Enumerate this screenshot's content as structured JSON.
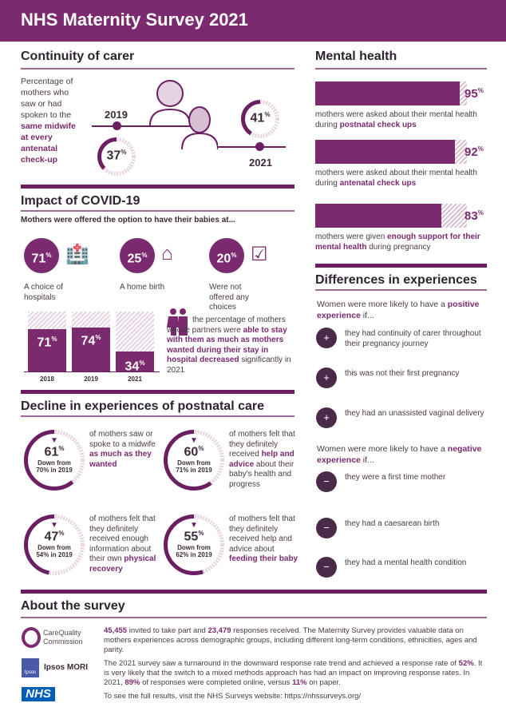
{
  "title": "NHS Maternity Survey 2021",
  "colors": {
    "brand": "#7b2a70",
    "light": "#e6d3e2",
    "text": "#3b2b38"
  },
  "continuity": {
    "heading": "Continuity of carer",
    "desc": [
      {
        "t": "Percentage of mothers who saw or had spoken to the "
      },
      {
        "t": "same midwife at every antenatal check-up",
        "b": true
      }
    ],
    "y2019": "2019",
    "v2019": 37,
    "y2021": "2021",
    "v2021": 41,
    "pct": "%"
  },
  "covid": {
    "heading": "Impact of COVID-19",
    "sub": "Mothers were offered the option to have their babies at...",
    "options": [
      {
        "value": 71,
        "label": "A choice of hospitals",
        "icon": "hospital-icon"
      },
      {
        "value": 25,
        "label": "A home birth",
        "icon": "house-icon"
      },
      {
        "value": 20,
        "label": "Were not offered any choices",
        "icon": "checkbox-icon"
      }
    ],
    "chart_data": {
      "type": "bar",
      "categories": [
        "2018",
        "2019",
        "2021"
      ],
      "values": [
        71,
        74,
        34
      ],
      "ylim": [
        0,
        100
      ]
    },
    "partners": [
      {
        "t": "the percentage of mothers whose partners were "
      },
      {
        "t": "able to stay with them as much as mothers wanted during their stay in hospital decreased",
        "b": true
      },
      {
        "t": " significantly in 2021"
      }
    ]
  },
  "postnatal": {
    "heading": "Decline in experiences of postnatal care",
    "items": [
      {
        "value": 61,
        "down": "Down from 70% in 2019",
        "text": [
          {
            "t": "of mothers saw or spoke to a midwife "
          },
          {
            "t": "as much as they wanted",
            "b": true
          }
        ]
      },
      {
        "value": 60,
        "down": "Down from 71% in 2019",
        "text": [
          {
            "t": "of mothers felt that they definitely received "
          },
          {
            "t": "help and advice",
            "b": true
          },
          {
            "t": " about their baby's health and progress"
          }
        ]
      },
      {
        "value": 47,
        "down": "Down from 54% in 2019",
        "text": [
          {
            "t": "of mothers felt that they definitely received enough information about their own "
          },
          {
            "t": "physical recovery",
            "b": true
          }
        ]
      },
      {
        "value": 55,
        "down": "Down from 62% in 2019",
        "text": [
          {
            "t": "of mothers felt that they definitely received help and advice about "
          },
          {
            "t": "feeding their baby",
            "b": true
          }
        ]
      }
    ]
  },
  "mental": {
    "heading": "Mental health",
    "items": [
      {
        "value": 95,
        "text": [
          {
            "t": "mothers were asked about their mental health during "
          },
          {
            "t": "postnatal check ups",
            "b": true
          }
        ]
      },
      {
        "value": 92,
        "text": [
          {
            "t": "mothers were asked about their mental health during "
          },
          {
            "t": "antenatal check ups",
            "b": true
          }
        ]
      },
      {
        "value": 83,
        "text": [
          {
            "t": "mothers were given "
          },
          {
            "t": "enough support for their mental health",
            "b": true
          },
          {
            "t": " during pregnancy"
          }
        ]
      }
    ]
  },
  "differences": {
    "heading": "Differences in experiences",
    "pos_intro": [
      {
        "t": "Women were more likely to have a "
      },
      {
        "t": "positive experience",
        "b": true
      },
      {
        "t": " if..."
      }
    ],
    "positive": [
      "they had continuity of carer throughout their pregnancy journey",
      "this was not their first pregnancy",
      "they had an unassisted vaginal delivery"
    ],
    "neg_intro": [
      {
        "t": "Women were more likely to have a "
      },
      {
        "t": "negative experience",
        "b": true
      },
      {
        "t": " if..."
      }
    ],
    "negative": [
      "they were a first time mother",
      "they had a caesarean birth",
      "they had a mental health condition"
    ]
  },
  "about": {
    "heading": "About the survey",
    "logos": {
      "cqc": "CareQuality Commission",
      "ipsos_small": "Ipsos",
      "ipsos": "Ipsos MORI",
      "nhs": "NHS"
    },
    "p1": [
      {
        "t": "45,455",
        "b": true
      },
      {
        "t": " invited to take part and "
      },
      {
        "t": "23,479",
        "b": true
      },
      {
        "t": " responses received. The Maternity Survey provides valuable data on mothers experiences across demographic groups, including different long-term conditions, ethnicities, ages and parity."
      }
    ],
    "p2": [
      {
        "t": "The 2021 survey saw a turnaround in the downward response rate trend and achieved a response rate of "
      },
      {
        "t": "52%",
        "b": true
      },
      {
        "t": ". It is very likely that the switch to a mixed methods approach has had an impact on improving response rates. In 2021, "
      },
      {
        "t": "89%",
        "b": true
      },
      {
        "t": " of responses were completed online, versus "
      },
      {
        "t": "11%",
        "b": true
      },
      {
        "t": " on paper."
      }
    ],
    "p3": "To see the full results, visit the NHS Surveys website: https://nhssurveys.org/"
  }
}
